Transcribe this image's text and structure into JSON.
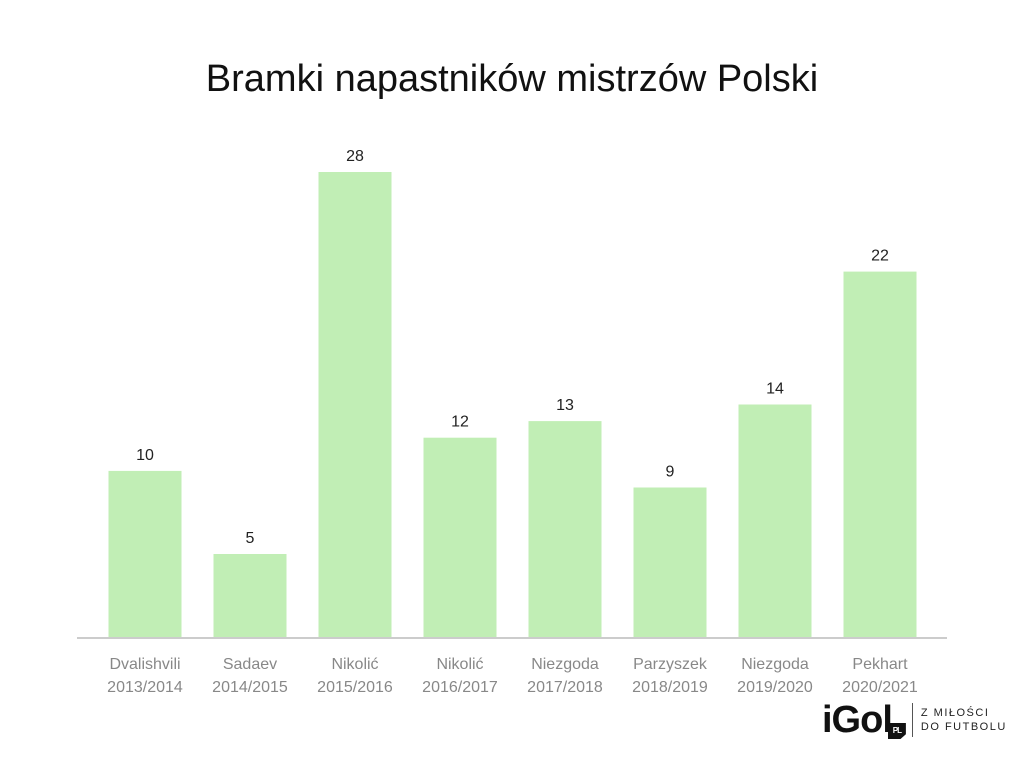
{
  "chart_data": {
    "type": "bar",
    "title": "Bramki napastników mistrzów Polski",
    "categories": [
      [
        "Dvalishvili",
        "2013/2014"
      ],
      [
        "Sadaev",
        "2014/2015"
      ],
      [
        "Nikolić",
        "2015/2016"
      ],
      [
        "Nikolić",
        "2016/2017"
      ],
      [
        "Niezgoda",
        "2017/2018"
      ],
      [
        "Parzyszek",
        "2018/2019"
      ],
      [
        "Niezgoda",
        "2019/2020"
      ],
      [
        "Pekhart",
        "2020/2021"
      ]
    ],
    "values": [
      10,
      5,
      28,
      12,
      13,
      9,
      14,
      22
    ],
    "xlabel": "",
    "ylabel": "",
    "ylim": [
      0,
      28
    ],
    "grid": false,
    "legend": "none",
    "colors": {
      "bar": "#c1eeb5",
      "axis": "#cccccc"
    }
  },
  "brand": {
    "logo": "iGol",
    "logo_suffix": "PL",
    "tagline_line1": "Z MIŁOŚCI",
    "tagline_line2": "DO FUTBOLU"
  }
}
